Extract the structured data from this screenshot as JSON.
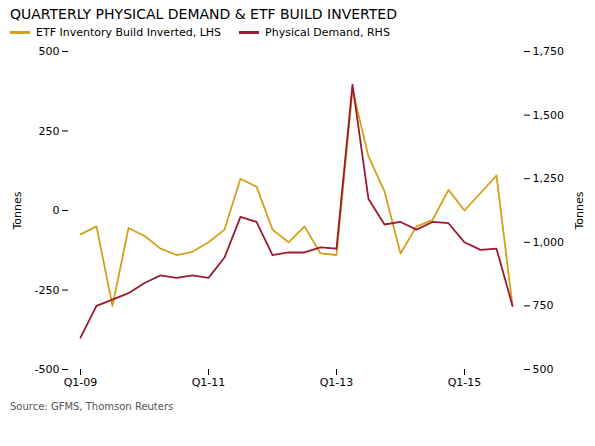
{
  "chart_data": {
    "type": "line",
    "title": "QUARTERLY PHYSICAL DEMAND & ETF BUILD INVERTED",
    "source": "Source: GFMS, Thomson Reuters",
    "ylabel": "Tonnes",
    "y2label": "Tonnes",
    "categories": [
      "Q1-09",
      null,
      null,
      null,
      null,
      null,
      null,
      null,
      "Q1-11",
      null,
      null,
      null,
      null,
      null,
      null,
      null,
      "Q1-13",
      null,
      null,
      null,
      null,
      null,
      null,
      null,
      "Q1-15",
      null,
      null,
      null
    ],
    "series": [
      {
        "name": "ETF Inventory Build Inverted, LHS",
        "color": "#D4A017",
        "axis": "y",
        "values": [
          -75,
          -50,
          -300,
          -55,
          -80,
          -120,
          -140,
          -130,
          -100,
          -60,
          100,
          75,
          -60,
          -100,
          -50,
          -135,
          -140,
          380,
          170,
          60,
          -135,
          -50,
          -30,
          65,
          0,
          55,
          110,
          -300
        ]
      },
      {
        "name": "Physical Demand, RHS",
        "color": "#9B1B30",
        "axis": "y2",
        "values": [
          625,
          750,
          775,
          800,
          840,
          870,
          860,
          870,
          860,
          940,
          1100,
          1080,
          950,
          960,
          960,
          980,
          975,
          1620,
          1170,
          1070,
          1080,
          1050,
          1080,
          1075,
          1000,
          970,
          975,
          750
        ]
      }
    ],
    "ylim": [
      -500,
      500
    ],
    "yticks": [
      -500,
      -250,
      0,
      250,
      500
    ],
    "y2lim": [
      500,
      1750
    ],
    "y2ticks": [
      500,
      750,
      {
        "value": 1000,
        "label": "1,000"
      },
      {
        "value": 1250,
        "label": "1,250"
      },
      {
        "value": 1500,
        "label": "1,500"
      },
      {
        "value": 1750,
        "label": "1,750"
      }
    ],
    "legend": "upper left",
    "grid": false
  }
}
